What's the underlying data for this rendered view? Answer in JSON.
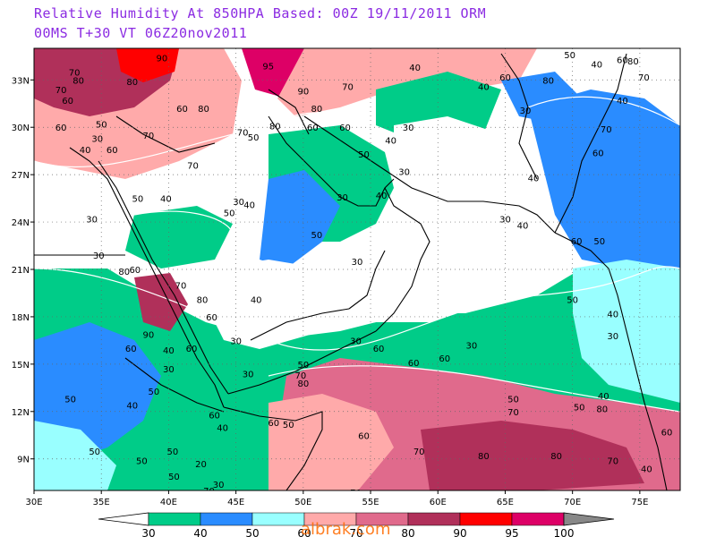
{
  "title": {
    "line1": "Relative Humidity At 850HPA    Based: 00Z  19/11/2011  ORM",
    "line2": "00MS  T+30 VT 06Z20nov2011"
  },
  "map": {
    "lon_range": [
      30,
      78
    ],
    "lat_range": [
      7,
      35
    ],
    "lon_ticks": [
      {
        "value": 30,
        "label": "30E"
      },
      {
        "value": 35,
        "label": "35E"
      },
      {
        "value": 40,
        "label": "40E"
      },
      {
        "value": 45,
        "label": "45E"
      },
      {
        "value": 50,
        "label": "50E"
      },
      {
        "value": 55,
        "label": "55E"
      },
      {
        "value": 60,
        "label": "60E"
      },
      {
        "value": 65,
        "label": "65E"
      },
      {
        "value": 70,
        "label": "70E"
      },
      {
        "value": 75,
        "label": "75E"
      }
    ],
    "lat_ticks": [
      {
        "value": 9,
        "label": "9N"
      },
      {
        "value": 12,
        "label": "12N"
      },
      {
        "value": 15,
        "label": "15N"
      },
      {
        "value": 18,
        "label": "18N"
      },
      {
        "value": 21,
        "label": "21N"
      },
      {
        "value": 24,
        "label": "24N"
      },
      {
        "value": 27,
        "label": "27N"
      },
      {
        "value": 30,
        "label": "30N"
      },
      {
        "value": 33,
        "label": "33N"
      }
    ],
    "contour_labels": [
      {
        "lon": 39.5,
        "lat": 34.4,
        "text": "90"
      },
      {
        "lon": 33.0,
        "lat": 33.5,
        "text": "70"
      },
      {
        "lon": 33.3,
        "lat": 33.0,
        "text": "80"
      },
      {
        "lon": 32.0,
        "lat": 32.4,
        "text": "70"
      },
      {
        "lon": 32.5,
        "lat": 31.7,
        "text": "60"
      },
      {
        "lon": 37.3,
        "lat": 32.9,
        "text": "80"
      },
      {
        "lon": 41.0,
        "lat": 31.2,
        "text": "60"
      },
      {
        "lon": 42.6,
        "lat": 31.2,
        "text": "80"
      },
      {
        "lon": 47.4,
        "lat": 33.9,
        "text": "95"
      },
      {
        "lon": 50.0,
        "lat": 32.3,
        "text": "90"
      },
      {
        "lon": 51.0,
        "lat": 31.2,
        "text": "80"
      },
      {
        "lon": 53.3,
        "lat": 32.6,
        "text": "70"
      },
      {
        "lon": 58.3,
        "lat": 33.8,
        "text": "40"
      },
      {
        "lon": 63.4,
        "lat": 32.6,
        "text": "40"
      },
      {
        "lon": 65.0,
        "lat": 33.2,
        "text": "60"
      },
      {
        "lon": 68.2,
        "lat": 33.0,
        "text": "80"
      },
      {
        "lon": 69.8,
        "lat": 34.6,
        "text": "50"
      },
      {
        "lon": 71.8,
        "lat": 34.0,
        "text": "40"
      },
      {
        "lon": 73.7,
        "lat": 34.3,
        "text": "60"
      },
      {
        "lon": 74.5,
        "lat": 34.2,
        "text": "80"
      },
      {
        "lon": 75.3,
        "lat": 33.2,
        "text": "70"
      },
      {
        "lon": 73.7,
        "lat": 31.7,
        "text": "40"
      },
      {
        "lon": 66.5,
        "lat": 31.1,
        "text": "30"
      },
      {
        "lon": 72.5,
        "lat": 29.9,
        "text": "70"
      },
      {
        "lon": 71.9,
        "lat": 28.4,
        "text": "60"
      },
      {
        "lon": 67.1,
        "lat": 26.8,
        "text": "40"
      },
      {
        "lon": 32.0,
        "lat": 30.0,
        "text": "60"
      },
      {
        "lon": 35.0,
        "lat": 30.2,
        "text": "50"
      },
      {
        "lon": 34.7,
        "lat": 29.3,
        "text": "30"
      },
      {
        "lon": 38.5,
        "lat": 29.5,
        "text": "70"
      },
      {
        "lon": 45.5,
        "lat": 29.7,
        "text": "70"
      },
      {
        "lon": 46.3,
        "lat": 29.4,
        "text": "50"
      },
      {
        "lon": 47.9,
        "lat": 30.1,
        "text": "80"
      },
      {
        "lon": 50.7,
        "lat": 30.0,
        "text": "60"
      },
      {
        "lon": 53.1,
        "lat": 30.0,
        "text": "60"
      },
      {
        "lon": 57.8,
        "lat": 30.0,
        "text": "30"
      },
      {
        "lon": 56.5,
        "lat": 29.2,
        "text": "40"
      },
      {
        "lon": 54.5,
        "lat": 28.3,
        "text": "50"
      },
      {
        "lon": 57.5,
        "lat": 27.2,
        "text": "30"
      },
      {
        "lon": 33.8,
        "lat": 28.6,
        "text": "40"
      },
      {
        "lon": 35.8,
        "lat": 28.6,
        "text": "60"
      },
      {
        "lon": 41.8,
        "lat": 27.6,
        "text": "70"
      },
      {
        "lon": 37.7,
        "lat": 25.5,
        "text": "50"
      },
      {
        "lon": 39.8,
        "lat": 25.5,
        "text": "40"
      },
      {
        "lon": 45.2,
        "lat": 25.3,
        "text": "30"
      },
      {
        "lon": 46.0,
        "lat": 25.1,
        "text": "40"
      },
      {
        "lon": 44.5,
        "lat": 24.6,
        "text": "50"
      },
      {
        "lon": 52.9,
        "lat": 25.6,
        "text": "30"
      },
      {
        "lon": 55.8,
        "lat": 25.7,
        "text": "40"
      },
      {
        "lon": 34.3,
        "lat": 24.2,
        "text": "30"
      },
      {
        "lon": 51.0,
        "lat": 23.2,
        "text": "50"
      },
      {
        "lon": 34.8,
        "lat": 21.9,
        "text": "30"
      },
      {
        "lon": 37.5,
        "lat": 21.0,
        "text": "60"
      },
      {
        "lon": 54.0,
        "lat": 21.5,
        "text": "30"
      },
      {
        "lon": 65.0,
        "lat": 24.2,
        "text": "30"
      },
      {
        "lon": 66.3,
        "lat": 23.8,
        "text": "40"
      },
      {
        "lon": 70.3,
        "lat": 22.8,
        "text": "60"
      },
      {
        "lon": 72.0,
        "lat": 22.8,
        "text": "50"
      },
      {
        "lon": 70.0,
        "lat": 19.1,
        "text": "50"
      },
      {
        "lon": 73.0,
        "lat": 18.2,
        "text": "40"
      },
      {
        "lon": 73.0,
        "lat": 16.8,
        "text": "30"
      },
      {
        "lon": 36.7,
        "lat": 20.9,
        "text": "80"
      },
      {
        "lon": 40.9,
        "lat": 20.0,
        "text": "70"
      },
      {
        "lon": 42.5,
        "lat": 19.1,
        "text": "80"
      },
      {
        "lon": 46.5,
        "lat": 19.1,
        "text": "40"
      },
      {
        "lon": 43.2,
        "lat": 18.0,
        "text": "60"
      },
      {
        "lon": 38.5,
        "lat": 16.9,
        "text": "90"
      },
      {
        "lon": 37.2,
        "lat": 16.0,
        "text": "60"
      },
      {
        "lon": 40.0,
        "lat": 15.9,
        "text": "40"
      },
      {
        "lon": 41.7,
        "lat": 16.0,
        "text": "60"
      },
      {
        "lon": 45.0,
        "lat": 16.5,
        "text": "30"
      },
      {
        "lon": 53.9,
        "lat": 16.5,
        "text": "30"
      },
      {
        "lon": 55.6,
        "lat": 16.0,
        "text": "60"
      },
      {
        "lon": 58.2,
        "lat": 15.1,
        "text": "60"
      },
      {
        "lon": 60.5,
        "lat": 15.4,
        "text": "60"
      },
      {
        "lon": 62.5,
        "lat": 16.2,
        "text": "30"
      },
      {
        "lon": 40.0,
        "lat": 14.7,
        "text": "30"
      },
      {
        "lon": 45.9,
        "lat": 14.4,
        "text": "30"
      },
      {
        "lon": 50.0,
        "lat": 15.0,
        "text": "50"
      },
      {
        "lon": 49.8,
        "lat": 14.3,
        "text": "70"
      },
      {
        "lon": 50.0,
        "lat": 13.8,
        "text": "80"
      },
      {
        "lon": 38.9,
        "lat": 13.3,
        "text": "50"
      },
      {
        "lon": 32.7,
        "lat": 12.8,
        "text": "50"
      },
      {
        "lon": 37.3,
        "lat": 12.4,
        "text": "40"
      },
      {
        "lon": 43.4,
        "lat": 11.8,
        "text": "60"
      },
      {
        "lon": 44.0,
        "lat": 11.0,
        "text": "40"
      },
      {
        "lon": 47.8,
        "lat": 11.3,
        "text": "60"
      },
      {
        "lon": 48.9,
        "lat": 11.2,
        "text": "50"
      },
      {
        "lon": 54.5,
        "lat": 10.5,
        "text": "60"
      },
      {
        "lon": 65.6,
        "lat": 12.0,
        "text": "70"
      },
      {
        "lon": 65.6,
        "lat": 12.8,
        "text": "50"
      },
      {
        "lon": 70.5,
        "lat": 12.3,
        "text": "50"
      },
      {
        "lon": 72.2,
        "lat": 12.2,
        "text": "80"
      },
      {
        "lon": 72.3,
        "lat": 13.0,
        "text": "40"
      },
      {
        "lon": 77.0,
        "lat": 10.7,
        "text": "60"
      },
      {
        "lon": 34.5,
        "lat": 9.5,
        "text": "50"
      },
      {
        "lon": 38.0,
        "lat": 8.9,
        "text": "50"
      },
      {
        "lon": 40.4,
        "lat": 7.9,
        "text": "50"
      },
      {
        "lon": 43.7,
        "lat": 7.4,
        "text": "30"
      },
      {
        "lon": 43.0,
        "lat": 7.0,
        "text": "70"
      },
      {
        "lon": 40.3,
        "lat": 9.5,
        "text": "50"
      },
      {
        "lon": 42.4,
        "lat": 8.7,
        "text": "20"
      },
      {
        "lon": 58.6,
        "lat": 9.5,
        "text": "70"
      },
      {
        "lon": 63.4,
        "lat": 9.2,
        "text": "80"
      },
      {
        "lon": 68.8,
        "lat": 9.2,
        "text": "80"
      },
      {
        "lon": 73.0,
        "lat": 8.9,
        "text": "70"
      },
      {
        "lon": 53.9,
        "lat": 6.9,
        "text": "70"
      },
      {
        "lon": 68.2,
        "lat": 6.3,
        "text": "70"
      },
      {
        "lon": 75.5,
        "lat": 8.4,
        "text": "40"
      }
    ]
  },
  "colorbar": {
    "bins": [
      {
        "color": "#00cc88"
      },
      {
        "color": "#2a8cff"
      },
      {
        "color": "#99ffff"
      },
      {
        "color": "#ffaaaa"
      },
      {
        "color": "#e06a8c"
      },
      {
        "color": "#b0305a"
      },
      {
        "color": "#ff0000"
      },
      {
        "color": "#dd0066"
      }
    ],
    "labels": [
      "30",
      "40",
      "50",
      "60",
      "70",
      "80",
      "90",
      "95",
      "100"
    ]
  },
  "watermark": "albrak.com"
}
